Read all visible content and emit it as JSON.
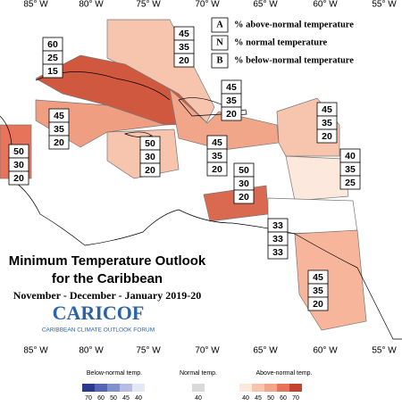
{
  "longitudes_top": [
    "85° W",
    "80° W",
    "75° W",
    "70° W",
    "65° W",
    "60° W",
    "55° W"
  ],
  "longitudes_bottom": [
    "85° W",
    "80° W",
    "75° W",
    "70° W",
    "65° W",
    "60° W",
    "55° W"
  ],
  "key": [
    {
      "letter": "A",
      "text": "% above-normal temperature"
    },
    {
      "letter": "N",
      "text": "% normal temperature"
    },
    {
      "letter": "B",
      "text": "% below-normal temperature"
    }
  ],
  "regions": [
    {
      "values": [
        60,
        25,
        15
      ]
    },
    {
      "values": [
        45,
        35,
        20
      ]
    },
    {
      "values": [
        45,
        35,
        20
      ]
    },
    {
      "values": [
        45,
        35,
        20
      ]
    },
    {
      "values": [
        45,
        35,
        20
      ]
    },
    {
      "values": [
        50,
        30,
        20
      ]
    },
    {
      "values": [
        50,
        30,
        20
      ]
    },
    {
      "values": [
        45,
        35,
        20
      ]
    },
    {
      "values": [
        40,
        35,
        25
      ]
    },
    {
      "values": [
        50,
        30,
        20
      ]
    },
    {
      "values": [
        33,
        33,
        33
      ]
    },
    {
      "values": [
        45,
        35,
        20
      ]
    }
  ],
  "title": {
    "line1": "Minimum Temperature Outlook",
    "line2": "for the Caribbean",
    "line3": "November - December - January 2019-20"
  },
  "logo": {
    "name": "CARICOF",
    "subtitle": "CARIBBEAN CLIMATE OUTLOOK FORUM"
  },
  "colorbar": {
    "below_label": "Below-normal temp.",
    "normal_label": "Normal temp.",
    "above_label": "Above-normal temp.",
    "below_ticks": [
      70,
      60,
      50,
      45,
      40
    ],
    "normal_ticks": [
      40
    ],
    "above_ticks": [
      40,
      45,
      50,
      60,
      70
    ]
  }
}
